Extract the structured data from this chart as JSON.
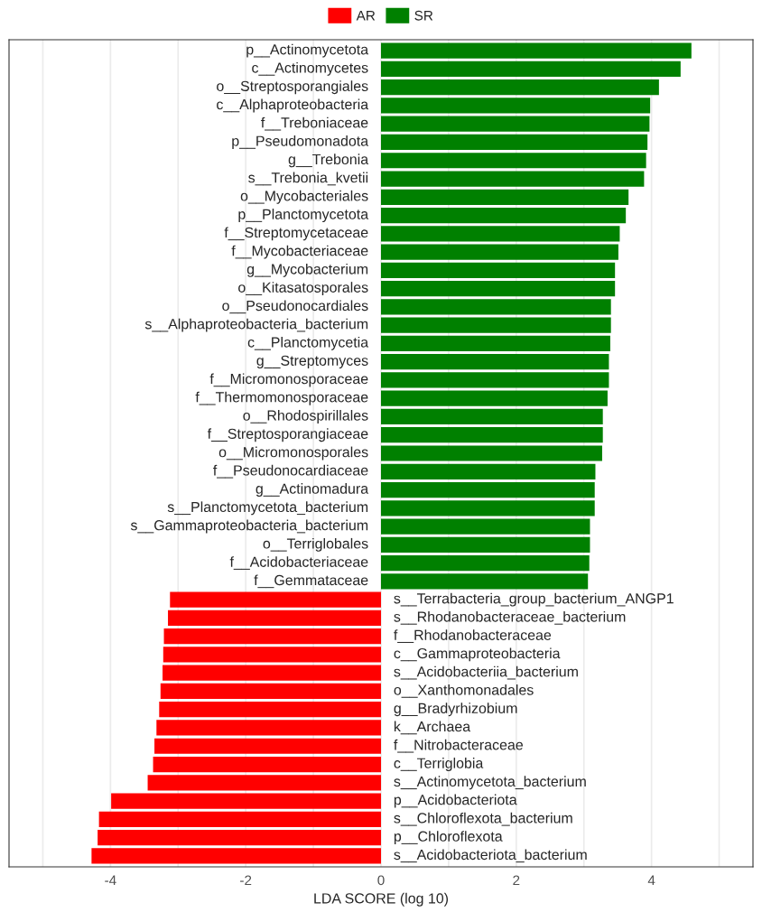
{
  "chart_data": {
    "type": "bar",
    "orientation": "horizontal",
    "xlabel": "LDA SCORE (log 10)",
    "categories": [
      "p__Actinomycetota",
      "c__Actinomycetes",
      "o__Streptosporangiales",
      "c__Alphaproteobacteria",
      "f__Treboniaceae",
      "p__Pseudomonadota",
      "g__Trebonia",
      "s__Trebonia_kvetii",
      "o__Mycobacteriales",
      "p__Planctomycetota",
      "f__Streptomycetaceae",
      "f__Mycobacteriaceae",
      "g__Mycobacterium",
      "o__Kitasatosporales",
      "o__Pseudonocardiales",
      "s__Alphaproteobacteria_bacterium",
      "c__Planctomycetia",
      "g__Streptomyces",
      "f__Micromonosporaceae",
      "f__Thermomonosporaceae",
      "o__Rhodospirillales",
      "f__Streptosporangiaceae",
      "o__Micromonosporales",
      "f__Pseudonocardiaceae",
      "g__Actinomadura",
      "s__Planctomycetota_bacterium",
      "s__Gammaproteobacteria_bacterium",
      "o__Terriglobales",
      "f__Acidobacteriaceae",
      "f__Gemmataceae",
      "s__Terrabacteria_group_bacterium_ANGP1",
      "s__Rhodanobacteraceae_bacterium",
      "f__Rhodanobacteraceae",
      "c__Gammaproteobacteria",
      "s__Acidobacteriia_bacterium",
      "o__Xanthomonadales",
      "g__Bradyrhizobium",
      "k__Archaea",
      "f__Nitrobacteraceae",
      "c__Terriglobia",
      "s__Actinomycetota_bacterium",
      "p__Acidobacteriota",
      "s__Chloroflexota_bacterium",
      "p__Chloroflexota",
      "s__Acidobacteriota_bacterium"
    ],
    "series": [
      {
        "name": "AR",
        "color": "#ff0000",
        "values": [
          null,
          null,
          null,
          null,
          null,
          null,
          null,
          null,
          null,
          null,
          null,
          null,
          null,
          null,
          null,
          null,
          null,
          null,
          null,
          null,
          null,
          null,
          null,
          null,
          null,
          null,
          null,
          null,
          null,
          null,
          -3.12,
          -3.15,
          -3.21,
          -3.22,
          -3.23,
          -3.26,
          -3.28,
          -3.32,
          -3.35,
          -3.37,
          -3.45,
          -3.99,
          -4.17,
          -4.19,
          -4.28
        ]
      },
      {
        "name": "SR",
        "color": "#008000",
        "values": [
          4.59,
          4.43,
          4.11,
          3.98,
          3.97,
          3.94,
          3.92,
          3.89,
          3.66,
          3.62,
          3.53,
          3.51,
          3.46,
          3.46,
          3.4,
          3.4,
          3.39,
          3.37,
          3.37,
          3.35,
          3.28,
          3.28,
          3.27,
          3.17,
          3.16,
          3.16,
          3.09,
          3.09,
          3.08,
          3.06,
          null,
          null,
          null,
          null,
          null,
          null,
          null,
          null,
          null,
          null,
          null,
          null,
          null,
          null,
          null
        ]
      }
    ],
    "xlim": [
      -5.5,
      5.5
    ],
    "xticks": [
      {
        "value": -5,
        "label": null
      },
      -4,
      {
        "value": -3,
        "label": null
      },
      -2,
      {
        "value": -1,
        "label": null
      },
      0,
      {
        "value": 1,
        "label": null
      },
      2,
      {
        "value": 3,
        "label": null
      },
      4,
      {
        "value": 5,
        "label": null
      }
    ],
    "grid": "x",
    "legend": "top"
  }
}
